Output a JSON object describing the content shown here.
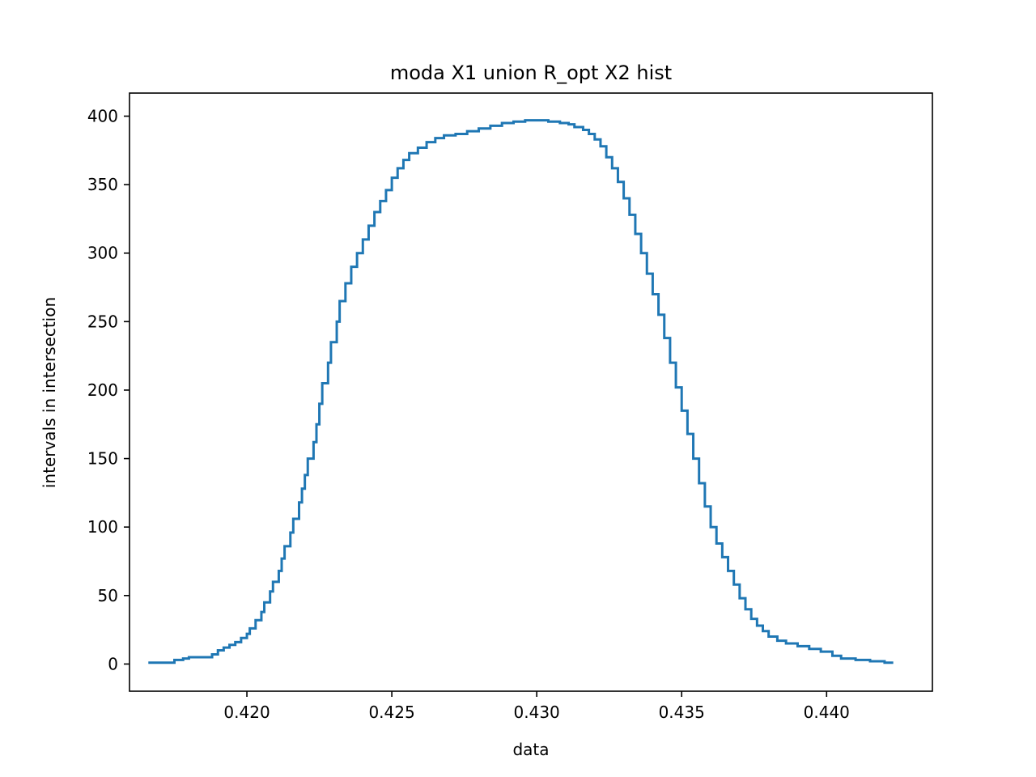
{
  "chart_data": {
    "type": "line",
    "title": "moda X1 union R_opt X2 hist",
    "xlabel": "data",
    "ylabel": "intervals in intersection",
    "xlim": [
      0.41595,
      0.44365
    ],
    "ylim": [
      -19.85,
      416.85
    ],
    "xticks": [
      0.42,
      0.425,
      0.43,
      0.435,
      0.44
    ],
    "xtick_labels": [
      "0.420",
      "0.425",
      "0.430",
      "0.435",
      "0.440"
    ],
    "yticks": [
      0,
      50,
      100,
      150,
      200,
      250,
      300,
      350,
      400
    ],
    "ytick_labels": [
      "0",
      "50",
      "100",
      "150",
      "200",
      "250",
      "300",
      "350",
      "400"
    ],
    "grid": false,
    "legend": "none",
    "series": [
      {
        "color": "#1f77b4",
        "step": true,
        "points": [
          [
            0.4166,
            1
          ],
          [
            0.4174,
            1
          ],
          [
            0.4175,
            3
          ],
          [
            0.4178,
            4
          ],
          [
            0.418,
            5
          ],
          [
            0.4185,
            5
          ],
          [
            0.4188,
            7
          ],
          [
            0.419,
            10
          ],
          [
            0.4192,
            12
          ],
          [
            0.4194,
            14
          ],
          [
            0.4196,
            16
          ],
          [
            0.4198,
            19
          ],
          [
            0.42,
            22
          ],
          [
            0.4201,
            26
          ],
          [
            0.4203,
            32
          ],
          [
            0.4205,
            38
          ],
          [
            0.4206,
            45
          ],
          [
            0.4208,
            53
          ],
          [
            0.4209,
            60
          ],
          [
            0.4211,
            68
          ],
          [
            0.4212,
            77
          ],
          [
            0.4213,
            86
          ],
          [
            0.4215,
            96
          ],
          [
            0.4216,
            106
          ],
          [
            0.4218,
            118
          ],
          [
            0.4219,
            128
          ],
          [
            0.422,
            138
          ],
          [
            0.4221,
            150
          ],
          [
            0.4223,
            162
          ],
          [
            0.4224,
            175
          ],
          [
            0.4225,
            190
          ],
          [
            0.4226,
            205
          ],
          [
            0.4228,
            220
          ],
          [
            0.4229,
            235
          ],
          [
            0.4231,
            250
          ],
          [
            0.4232,
            265
          ],
          [
            0.4234,
            278
          ],
          [
            0.4236,
            290
          ],
          [
            0.4238,
            300
          ],
          [
            0.424,
            310
          ],
          [
            0.4242,
            320
          ],
          [
            0.4244,
            330
          ],
          [
            0.4246,
            338
          ],
          [
            0.4248,
            346
          ],
          [
            0.425,
            355
          ],
          [
            0.4252,
            362
          ],
          [
            0.4254,
            368
          ],
          [
            0.4256,
            373
          ],
          [
            0.4259,
            377
          ],
          [
            0.4262,
            381
          ],
          [
            0.4265,
            384
          ],
          [
            0.4268,
            386
          ],
          [
            0.4272,
            387
          ],
          [
            0.4276,
            389
          ],
          [
            0.428,
            391
          ],
          [
            0.4284,
            393
          ],
          [
            0.4288,
            395
          ],
          [
            0.4292,
            396
          ],
          [
            0.4296,
            397
          ],
          [
            0.43,
            397
          ],
          [
            0.4304,
            396
          ],
          [
            0.4308,
            395
          ],
          [
            0.4311,
            394
          ],
          [
            0.4313,
            392
          ],
          [
            0.4316,
            390
          ],
          [
            0.4318,
            387
          ],
          [
            0.432,
            383
          ],
          [
            0.4322,
            378
          ],
          [
            0.4324,
            370
          ],
          [
            0.4326,
            362
          ],
          [
            0.4328,
            352
          ],
          [
            0.433,
            340
          ],
          [
            0.4332,
            328
          ],
          [
            0.4334,
            314
          ],
          [
            0.4336,
            300
          ],
          [
            0.4338,
            285
          ],
          [
            0.434,
            270
          ],
          [
            0.4342,
            255
          ],
          [
            0.4344,
            238
          ],
          [
            0.4346,
            220
          ],
          [
            0.4348,
            202
          ],
          [
            0.435,
            185
          ],
          [
            0.4352,
            168
          ],
          [
            0.4354,
            150
          ],
          [
            0.4356,
            132
          ],
          [
            0.4358,
            115
          ],
          [
            0.436,
            100
          ],
          [
            0.4362,
            88
          ],
          [
            0.4364,
            78
          ],
          [
            0.4366,
            68
          ],
          [
            0.4368,
            58
          ],
          [
            0.437,
            48
          ],
          [
            0.4372,
            40
          ],
          [
            0.4374,
            33
          ],
          [
            0.4376,
            28
          ],
          [
            0.4378,
            24
          ],
          [
            0.438,
            20
          ],
          [
            0.4383,
            17
          ],
          [
            0.4386,
            15
          ],
          [
            0.439,
            13
          ],
          [
            0.4394,
            11
          ],
          [
            0.4398,
            9
          ],
          [
            0.4402,
            6
          ],
          [
            0.4405,
            4
          ],
          [
            0.441,
            3
          ],
          [
            0.4415,
            2
          ],
          [
            0.442,
            1
          ],
          [
            0.4423,
            1
          ]
        ]
      }
    ]
  }
}
